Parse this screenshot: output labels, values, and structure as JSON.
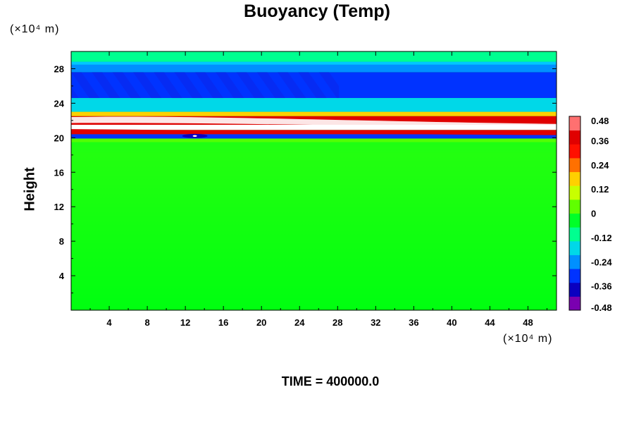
{
  "chart_data": {
    "type": "heatmap",
    "title": "Buoyancy (Temp)",
    "ylabel": "Height",
    "xlabel": "",
    "x_unit": "(×10⁴ m)",
    "y_unit": "(×10⁴ m)",
    "xlim": [
      0,
      51
    ],
    "ylim": [
      0,
      30
    ],
    "xticks": [
      4,
      8,
      12,
      16,
      20,
      24,
      28,
      32,
      36,
      40,
      44,
      48
    ],
    "yticks": [
      4,
      8,
      12,
      16,
      20,
      24,
      28
    ],
    "colorbar": {
      "ticks": [
        "0.48",
        "0.36",
        "0.24",
        "0.12",
        "0",
        "-0.12",
        "-0.24",
        "-0.36",
        "-0.48"
      ],
      "range": [
        -0.48,
        0.48
      ],
      "colors": [
        "#7a00b0",
        "#0a00c0",
        "#0033ff",
        "#0090ff",
        "#00d8e8",
        "#00ff90",
        "#00ff28",
        "#60ff00",
        "#c8ff00",
        "#ffd000",
        "#ff7000",
        "#ff1000",
        "#e00000",
        "#ff7070"
      ]
    },
    "bands": [
      {
        "name": "upper-cyan",
        "y": [
          28.8,
          30
        ],
        "value": -0.12
      },
      {
        "name": "upper-mid-blue",
        "y": [
          27.6,
          28.8
        ],
        "value": -0.24
      },
      {
        "name": "upper-dark-blue",
        "y": [
          24.6,
          27.6
        ],
        "value": -0.33
      },
      {
        "name": "blue-cyan",
        "y": [
          23.0,
          24.6
        ],
        "value": -0.2
      },
      {
        "name": "yellow-orange",
        "y": [
          22.5,
          23.0
        ],
        "value": 0.2
      },
      {
        "name": "red-max",
        "y": [
          21.5,
          22.5
        ],
        "value": 0.4
      },
      {
        "name": "white-max",
        "y": [
          20.9,
          21.5
        ],
        "value": 0.5
      },
      {
        "name": "lower-red",
        "y": [
          20.4,
          20.9
        ],
        "value": 0.38
      },
      {
        "name": "blue-min",
        "y": [
          19.9,
          20.4
        ],
        "value": -0.3
      },
      {
        "name": "green-field",
        "y": [
          0,
          19.9
        ],
        "value": 0.0
      }
    ]
  },
  "footer": {
    "time_label": "TIME = 400000.0"
  }
}
